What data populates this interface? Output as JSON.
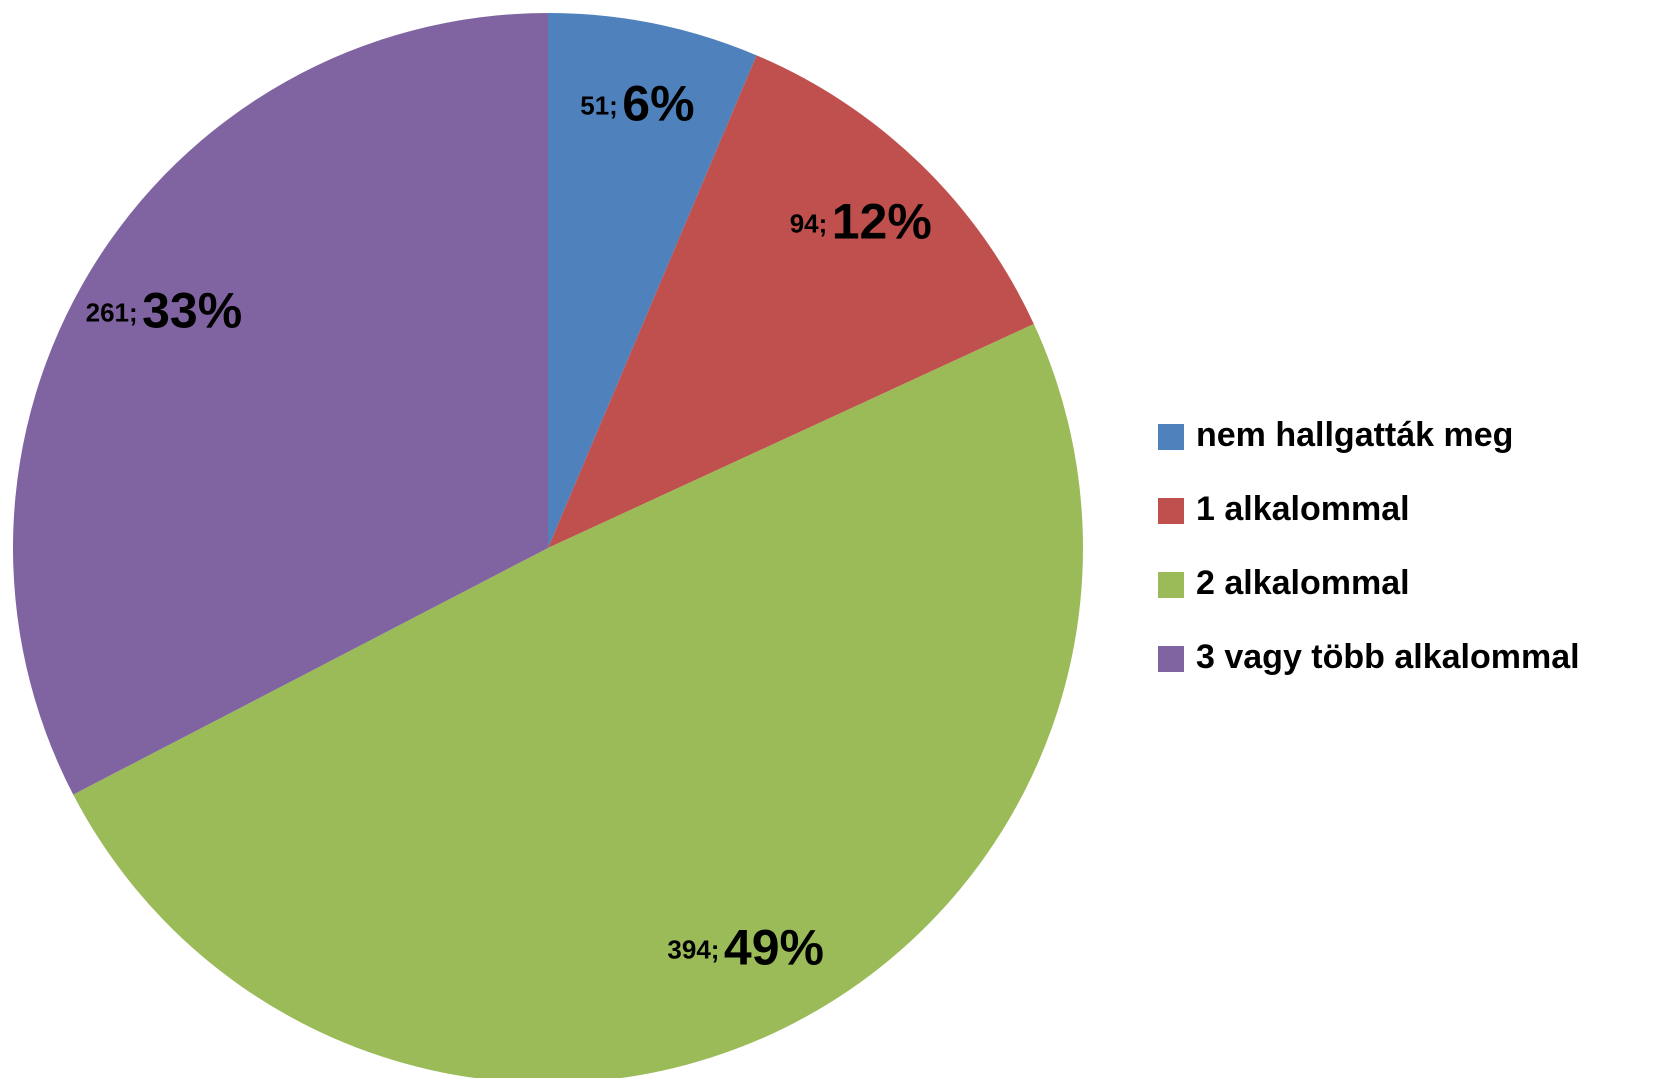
{
  "chart_data": {
    "type": "pie",
    "categories": [
      "nem hallgatták meg",
      "1 alkalommal",
      "2 alkalommal",
      "3 vagy több alkalommal"
    ],
    "values": [
      51,
      94,
      394,
      261
    ],
    "value_labels": [
      "51;",
      "94;",
      "394;",
      "261;"
    ],
    "percent_labels": [
      "6%",
      "12%",
      "49%",
      "33%"
    ],
    "colors": [
      "#4f81bd",
      "#c0504d",
      "#9bbb59",
      "#8064a2"
    ],
    "legend": "right"
  }
}
